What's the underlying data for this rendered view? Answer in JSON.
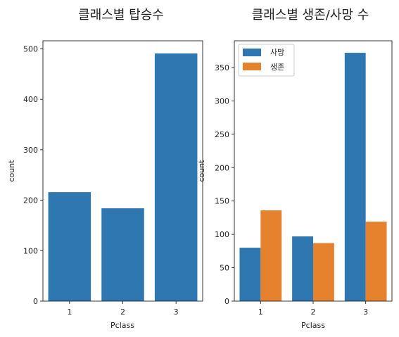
{
  "chart_data": [
    {
      "type": "bar",
      "title": "클래스별 탑승수",
      "xlabel": "Pclass",
      "ylabel": "count",
      "categories": [
        "1",
        "2",
        "3"
      ],
      "values": [
        216,
        184,
        491
      ],
      "ylim": [
        0,
        516
      ],
      "yticks": [
        0,
        100,
        200,
        300,
        400,
        500
      ],
      "grid": false,
      "color": "#2f77b0"
    },
    {
      "type": "bar",
      "title": "클래스별 생존/사망 수",
      "xlabel": "Pclass",
      "ylabel": "count",
      "categories": [
        "1",
        "2",
        "3"
      ],
      "series": [
        {
          "name": "사망",
          "values": [
            80,
            97,
            372
          ],
          "color": "#2f77b0"
        },
        {
          "name": "생존",
          "values": [
            136,
            87,
            119
          ],
          "color": "#e6822e"
        }
      ],
      "ylim": [
        0,
        390
      ],
      "yticks": [
        0,
        50,
        100,
        150,
        200,
        250,
        300,
        350
      ],
      "legend": "top-left",
      "grid": false
    }
  ]
}
